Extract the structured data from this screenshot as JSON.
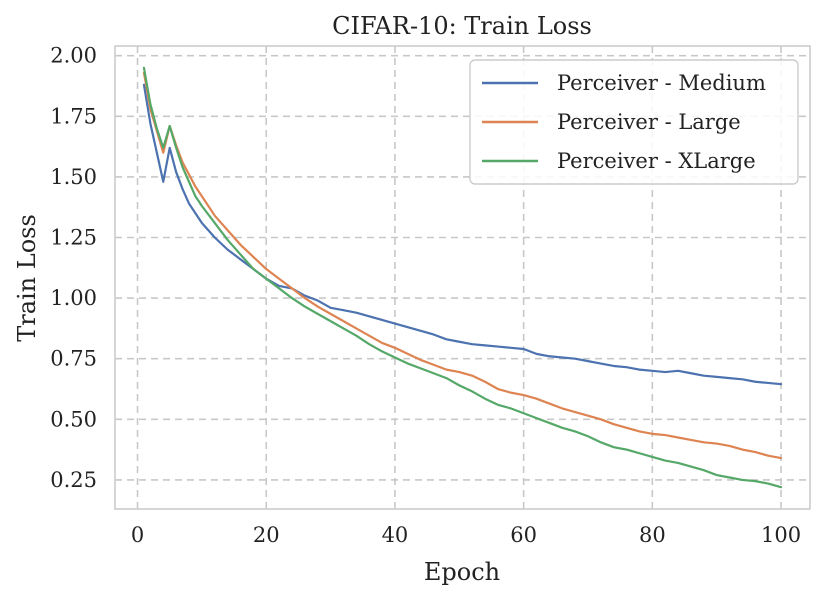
{
  "chart_data": {
    "type": "line",
    "title": "CIFAR-10: Train Loss",
    "xlabel": "Epoch",
    "ylabel": "Train Loss",
    "xlim": [
      -3.5,
      104.5
    ],
    "ylim": [
      0.13,
      2.04
    ],
    "xticks": [
      0,
      20,
      40,
      60,
      80,
      100
    ],
    "xtick_labels": [
      "0",
      "20",
      "40",
      "60",
      "80",
      "100"
    ],
    "yticks": [
      0.25,
      0.5,
      0.75,
      1.0,
      1.25,
      1.5,
      1.75,
      2.0
    ],
    "ytick_labels": [
      "0.25",
      "0.50",
      "0.75",
      "1.00",
      "1.25",
      "1.50",
      "1.75",
      "2.00"
    ],
    "grid": true,
    "legend_position": "top-right",
    "series": [
      {
        "name": "Perceiver - Medium",
        "color": "#4c72b0",
        "x": [
          1,
          2,
          3,
          4,
          5,
          6,
          7,
          8,
          9,
          10,
          12,
          14,
          16,
          18,
          20,
          22,
          24,
          26,
          28,
          30,
          32,
          34,
          36,
          38,
          40,
          42,
          44,
          46,
          48,
          50,
          52,
          54,
          56,
          58,
          60,
          62,
          64,
          66,
          68,
          70,
          72,
          74,
          76,
          78,
          80,
          82,
          84,
          86,
          88,
          90,
          92,
          94,
          96,
          98,
          100
        ],
        "y": [
          1.88,
          1.72,
          1.6,
          1.48,
          1.62,
          1.52,
          1.45,
          1.39,
          1.35,
          1.31,
          1.25,
          1.2,
          1.16,
          1.12,
          1.08,
          1.05,
          1.04,
          1.01,
          0.99,
          0.96,
          0.95,
          0.94,
          0.925,
          0.91,
          0.895,
          0.88,
          0.865,
          0.85,
          0.83,
          0.82,
          0.81,
          0.805,
          0.8,
          0.795,
          0.79,
          0.77,
          0.76,
          0.755,
          0.75,
          0.74,
          0.73,
          0.72,
          0.715,
          0.705,
          0.7,
          0.695,
          0.7,
          0.69,
          0.68,
          0.675,
          0.67,
          0.665,
          0.655,
          0.65,
          0.645
        ]
      },
      {
        "name": "Perceiver - Large",
        "color": "#dd8452",
        "x": [
          1,
          2,
          3,
          4,
          5,
          6,
          7,
          8,
          9,
          10,
          12,
          14,
          16,
          18,
          20,
          22,
          24,
          26,
          28,
          30,
          32,
          34,
          36,
          38,
          40,
          42,
          44,
          46,
          48,
          50,
          52,
          54,
          56,
          58,
          60,
          62,
          64,
          66,
          68,
          70,
          72,
          74,
          76,
          78,
          80,
          82,
          84,
          86,
          88,
          90,
          92,
          94,
          96,
          98,
          100
        ],
        "y": [
          1.93,
          1.78,
          1.69,
          1.6,
          1.71,
          1.63,
          1.56,
          1.51,
          1.46,
          1.42,
          1.34,
          1.28,
          1.22,
          1.17,
          1.12,
          1.08,
          1.04,
          1.0,
          0.965,
          0.935,
          0.905,
          0.875,
          0.845,
          0.815,
          0.795,
          0.77,
          0.745,
          0.725,
          0.705,
          0.695,
          0.68,
          0.655,
          0.625,
          0.61,
          0.6,
          0.585,
          0.565,
          0.545,
          0.53,
          0.515,
          0.5,
          0.48,
          0.465,
          0.45,
          0.44,
          0.435,
          0.425,
          0.415,
          0.405,
          0.4,
          0.39,
          0.375,
          0.365,
          0.35,
          0.34
        ]
      },
      {
        "name": "Perceiver - XLarge",
        "color": "#55a868",
        "x": [
          1,
          2,
          3,
          4,
          5,
          6,
          7,
          8,
          9,
          10,
          12,
          14,
          16,
          18,
          20,
          22,
          24,
          26,
          28,
          30,
          32,
          34,
          36,
          38,
          40,
          42,
          44,
          46,
          48,
          50,
          52,
          54,
          56,
          58,
          60,
          62,
          64,
          66,
          68,
          70,
          72,
          74,
          76,
          78,
          80,
          82,
          84,
          86,
          88,
          90,
          92,
          94,
          96,
          98,
          100
        ],
        "y": [
          1.95,
          1.8,
          1.7,
          1.62,
          1.71,
          1.62,
          1.54,
          1.48,
          1.42,
          1.38,
          1.31,
          1.24,
          1.18,
          1.12,
          1.08,
          1.04,
          1.0,
          0.965,
          0.935,
          0.905,
          0.875,
          0.845,
          0.81,
          0.78,
          0.755,
          0.73,
          0.71,
          0.69,
          0.67,
          0.64,
          0.615,
          0.585,
          0.56,
          0.545,
          0.525,
          0.505,
          0.485,
          0.465,
          0.45,
          0.43,
          0.405,
          0.385,
          0.375,
          0.36,
          0.345,
          0.33,
          0.32,
          0.305,
          0.29,
          0.27,
          0.26,
          0.25,
          0.245,
          0.235,
          0.22
        ]
      }
    ]
  }
}
